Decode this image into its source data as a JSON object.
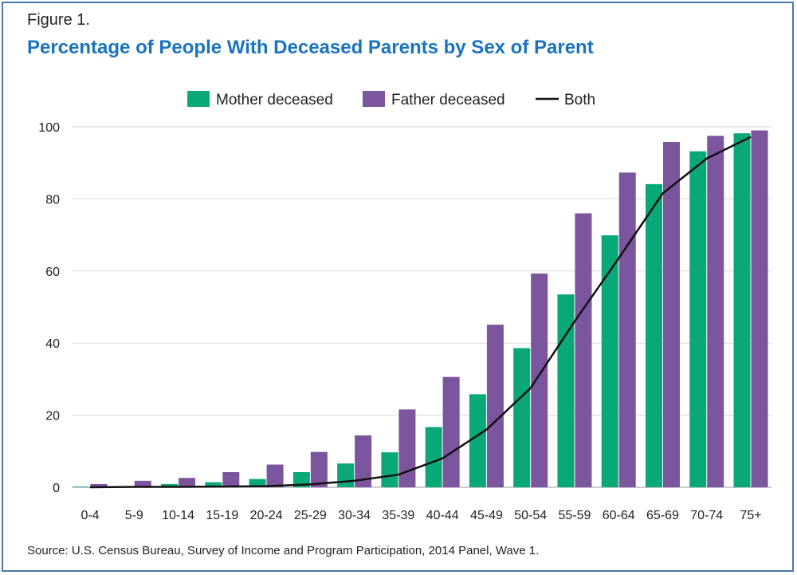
{
  "figure_label": "Figure 1.",
  "title": "Percentage of People With Deceased Parents by Sex of Parent",
  "source": "Source: U.S. Census Bureau, Survey of Income and Program Participation, 2014 Panel, Wave 1.",
  "colors": {
    "mother": "#0aa879",
    "father": "#7b559e",
    "both": "#111111",
    "title": "#1a73c1",
    "grid": "#d9d9d9"
  },
  "chart_data": {
    "type": "bar",
    "title": "Percentage of People With Deceased Parents by Sex of Parent",
    "xlabel": "",
    "ylabel": "",
    "ylim": [
      0,
      100
    ],
    "yticks": [
      0,
      20,
      40,
      60,
      80,
      100
    ],
    "grid": true,
    "legend_position": "top-center",
    "categories": [
      "0-4",
      "5-9",
      "10-14",
      "15-19",
      "20-24",
      "25-29",
      "30-34",
      "35-39",
      "40-44",
      "45-49",
      "50-54",
      "55-59",
      "60-64",
      "65-69",
      "70-74",
      "75+"
    ],
    "series": [
      {
        "name": "Mother deceased",
        "type": "bar",
        "values": [
          0.2,
          0.3,
          0.9,
          1.4,
          2.3,
          4.2,
          6.6,
          9.7,
          16.7,
          25.8,
          38.6,
          53.5,
          69.9,
          84.1,
          93.2,
          98.2
        ]
      },
      {
        "name": "Father deceased",
        "type": "bar",
        "values": [
          0.9,
          1.8,
          2.6,
          4.2,
          6.3,
          9.8,
          14.4,
          21.6,
          30.6,
          45.1,
          59.3,
          76.0,
          87.3,
          95.8,
          97.5,
          99.0
        ]
      },
      {
        "name": "Both",
        "type": "line",
        "values": [
          0.0,
          0.1,
          0.1,
          0.2,
          0.3,
          0.8,
          1.8,
          3.5,
          8.0,
          16.0,
          27.5,
          46.0,
          63.5,
          81.5,
          91.2,
          97.2
        ]
      }
    ]
  }
}
